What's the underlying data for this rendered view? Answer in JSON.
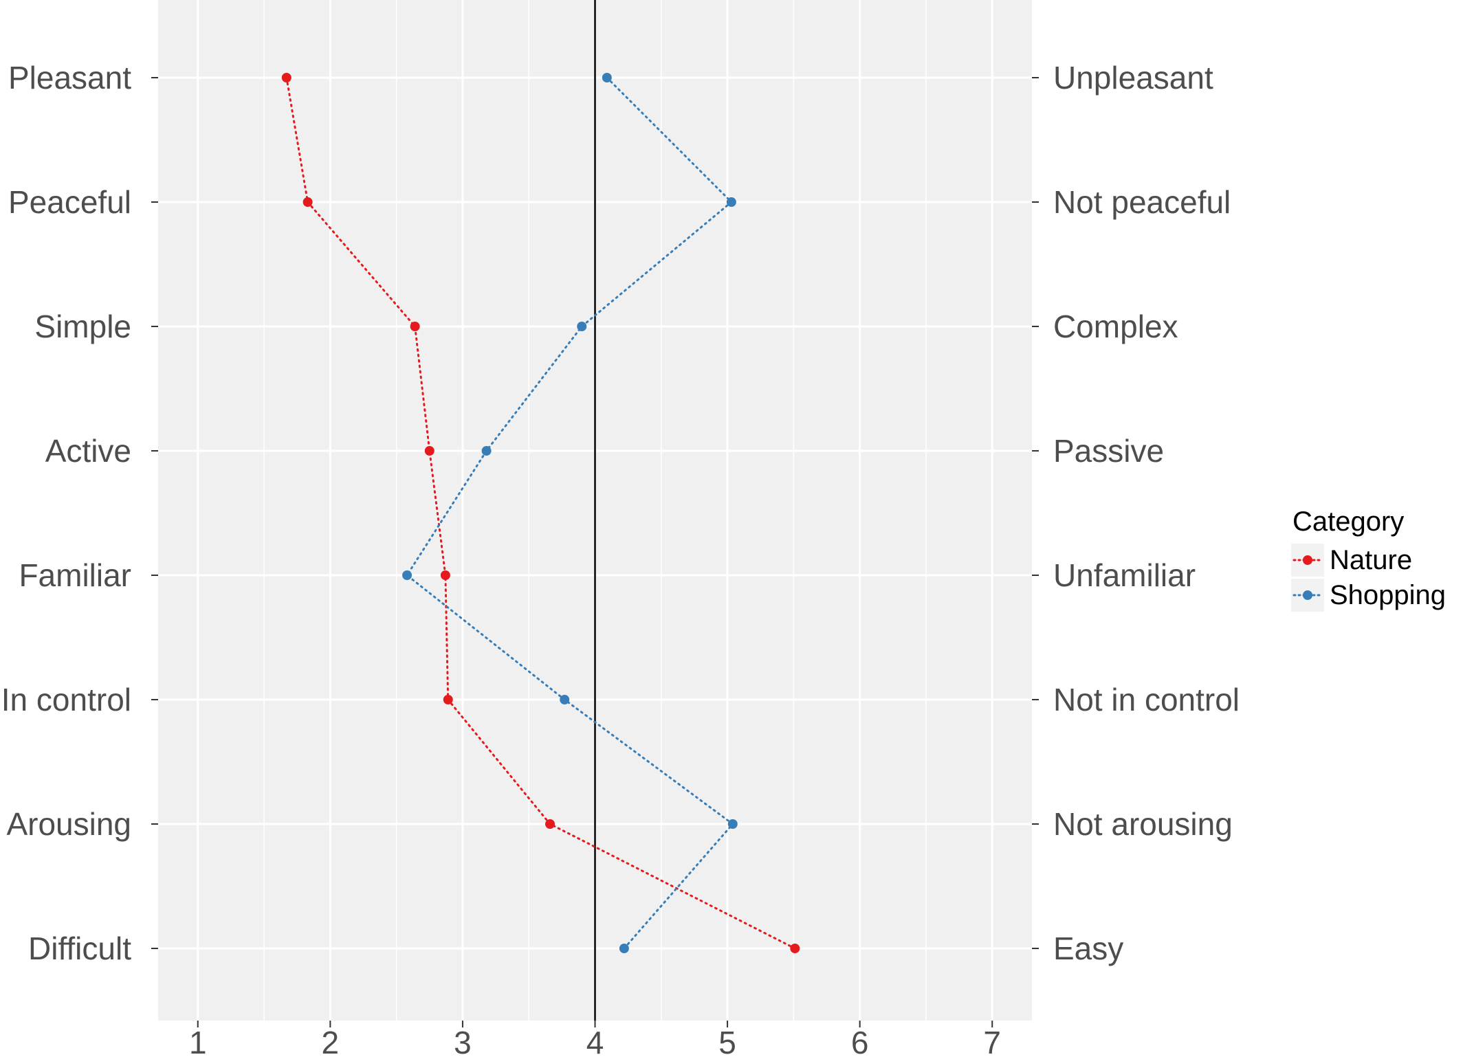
{
  "chart_data": {
    "type": "line",
    "title": "",
    "xlabel": "",
    "ylabel": "",
    "xlim": [
      0.7,
      7.3
    ],
    "x_ticks": [
      "1",
      "2",
      "3",
      "4",
      "5",
      "6",
      "7"
    ],
    "y_left_labels": [
      "Pleasant",
      "Peaceful",
      "Simple",
      "Active",
      "Familiar",
      "In control",
      "Arousing",
      "Difficult"
    ],
    "y_right_labels": [
      "Unpleasant",
      "Not peaceful",
      "Complex",
      "Passive",
      "Unfamiliar",
      "Not in control",
      "Not arousing",
      "Easy"
    ],
    "reference_line_x": 4,
    "grid": true,
    "legend": {
      "title": "Category",
      "position": "right"
    },
    "series": [
      {
        "name": "Nature",
        "color": "#e41a1c",
        "values": [
          1.67,
          1.83,
          2.64,
          2.75,
          2.87,
          2.89,
          3.66,
          5.51
        ]
      },
      {
        "name": "Shopping",
        "color": "#377eb8",
        "values": [
          4.09,
          5.03,
          3.9,
          3.18,
          2.58,
          3.77,
          5.04,
          4.22
        ]
      }
    ]
  }
}
